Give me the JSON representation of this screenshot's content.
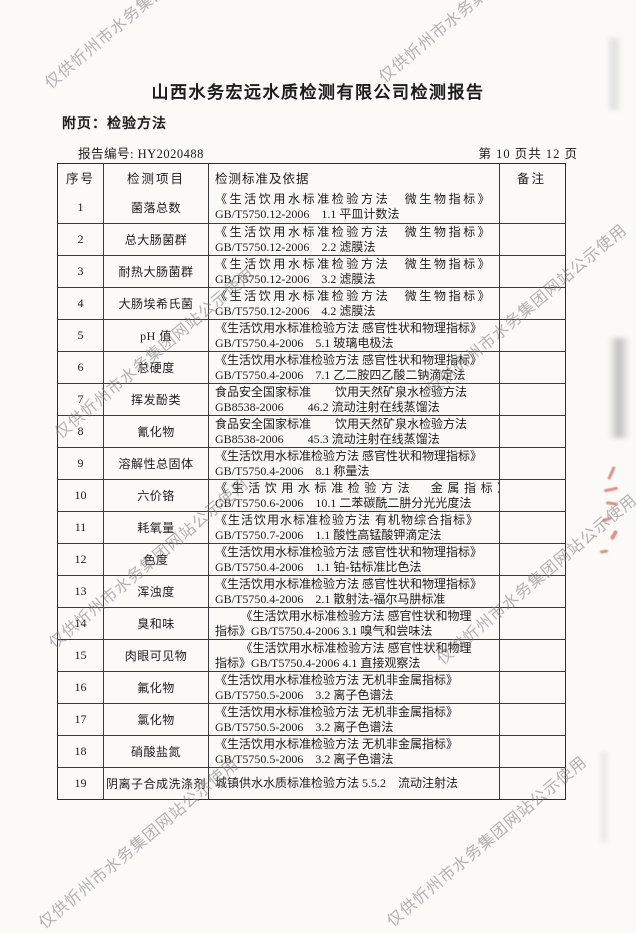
{
  "watermark": {
    "text": "仅供忻州市水务集团网站公示使用",
    "color": "#7d7d80"
  },
  "header": {
    "title": "山西水务宏远水质检测有限公司检测报告",
    "attachment": "附页：检验方法",
    "report_no": "报告编号: HY2020488",
    "page_info": "第 10 页共 12 页"
  },
  "table": {
    "columns": [
      "序号",
      "检测项目",
      "检测标准及依据",
      "备注"
    ],
    "rows": [
      {
        "no": "1",
        "item": "菌落总数",
        "std": [
          "《生活饮用水标准检验方法　微生物指标》",
          "GB/T5750.12-2006　1.1 平皿计数法"
        ],
        "fmt": [
          "spread",
          ""
        ],
        "note": ""
      },
      {
        "no": "2",
        "item": "总大肠菌群",
        "std": [
          "《生活饮用水标准检验方法　微生物指标》",
          "GB/T5750.12-2006　2.2 滤膜法"
        ],
        "fmt": [
          "spread",
          ""
        ],
        "note": ""
      },
      {
        "no": "3",
        "item": "耐热大肠菌群",
        "std": [
          "《生活饮用水标准检验方法　微生物指标》",
          "GB/T5750.12-2006　3.2 滤膜法"
        ],
        "fmt": [
          "spread",
          ""
        ],
        "note": ""
      },
      {
        "no": "4",
        "item": "大肠埃希氏菌",
        "std": [
          "《生活饮用水标准检验方法　微生物指标》",
          "GB/T5750.12-2006　4.2 滤膜法"
        ],
        "fmt": [
          "spread",
          ""
        ],
        "note": ""
      },
      {
        "no": "5",
        "item": "pH 值",
        "std": [
          "《生活饮用水标准检验方法 感官性状和物理指标》",
          "GB/T5750.4-2006　5.1 玻璃电极法"
        ],
        "fmt": [
          "",
          ""
        ],
        "note": ""
      },
      {
        "no": "6",
        "item": "总硬度",
        "std": [
          "《生活饮用水标准检验方法 感官性状和物理指标》",
          "GB/T5750.4-2006　7.1 乙二胺四乙酸二钠滴定法"
        ],
        "fmt": [
          "",
          ""
        ],
        "note": ""
      },
      {
        "no": "7",
        "item": "挥发酚类",
        "std": [
          "食品安全国家标准　　饮用天然矿泉水检验方法",
          "GB8538-2006　　46.2 流动注射在线蒸馏法"
        ],
        "fmt": [
          "",
          ""
        ],
        "note": ""
      },
      {
        "no": "8",
        "item": "氰化物",
        "std": [
          "食品安全国家标准　　饮用天然矿泉水检验方法",
          "GB8538-2006　　45.3 流动注射在线蒸馏法"
        ],
        "fmt": [
          "",
          ""
        ],
        "note": ""
      },
      {
        "no": "9",
        "item": "溶解性总固体",
        "std": [
          "《生活饮用水标准检验方法 感官性状和物理指标》",
          "GB/T5750.4-2006　8.1 称量法"
        ],
        "fmt": [
          "",
          ""
        ],
        "note": ""
      },
      {
        "no": "10",
        "item": "六价铬",
        "std": [
          "《生活饮用水标准检验方法　金属指标》",
          "GB/T5750.6-2006　10.1 二苯碳酰二肼分光光度法"
        ],
        "fmt": [
          "spread-lg",
          ""
        ],
        "note": ""
      },
      {
        "no": "11",
        "item": "耗氧量",
        "std": [
          "《生活饮用水标准检验方法 有机物综合指标》",
          "GB/T5750.7-2006　1.1 酸性高锰酸钾滴定法"
        ],
        "fmt": [
          "spread-sm",
          ""
        ],
        "note": ""
      },
      {
        "no": "12",
        "item": "色度",
        "std": [
          "《生活饮用水标准检验方法 感官性状和物理指标》",
          "GB/T5750.4-2006　1.1 铂-钴标准比色法"
        ],
        "fmt": [
          "",
          ""
        ],
        "note": ""
      },
      {
        "no": "13",
        "item": "浑浊度",
        "std": [
          "《生活饮用水标准检验方法 感官性状和物理指标》",
          "GB/T5750.4-2006　2.1 散射法-福尔马肼标准"
        ],
        "fmt": [
          "",
          ""
        ],
        "note": ""
      },
      {
        "no": "14",
        "item": "臭和味",
        "std": [
          "《生活饮用水标准检验方法 感官性状和物理",
          "指标》GB/T5750.4-2006 3.1 嗅气和尝味法"
        ],
        "fmt": [
          "center",
          ""
        ],
        "note": ""
      },
      {
        "no": "15",
        "item": "肉眼可见物",
        "std": [
          "《生活饮用水标准检验方法 感官性状和物理",
          "指标》GB/T5750.4-2006 4.1 直接观察法"
        ],
        "fmt": [
          "center",
          ""
        ],
        "note": ""
      },
      {
        "no": "16",
        "item": "氟化物",
        "std": [
          "《生活饮用水标准检验方法 无机非金属指标》",
          "GB/T5750.5-2006　3.2 离子色谱法"
        ],
        "fmt": [
          "",
          ""
        ],
        "note": ""
      },
      {
        "no": "17",
        "item": "氯化物",
        "std": [
          "《生活饮用水标准检验方法 无机非金属指标》",
          "GB/T5750.5-2006　3.2 离子色谱法"
        ],
        "fmt": [
          "",
          ""
        ],
        "note": ""
      },
      {
        "no": "18",
        "item": "硝酸盐氮",
        "std": [
          "《生活饮用水标准检验方法 无机非金属指标》",
          "GB/T5750.5-2006　3.2 离子色谱法"
        ],
        "fmt": [
          "",
          ""
        ],
        "note": ""
      },
      {
        "no": "19",
        "item": "阴离子合成洗涤剂",
        "std": [
          "城镇供水水质标准检验方法 5.5.2　流动注射法"
        ],
        "fmt": [
          ""
        ],
        "note": ""
      }
    ]
  },
  "seal": {
    "color": "#c23a3a"
  },
  "colors": {
    "paper": "#fbfaf7",
    "ink": "#1c1c1c",
    "border": "#3c3c3c"
  }
}
